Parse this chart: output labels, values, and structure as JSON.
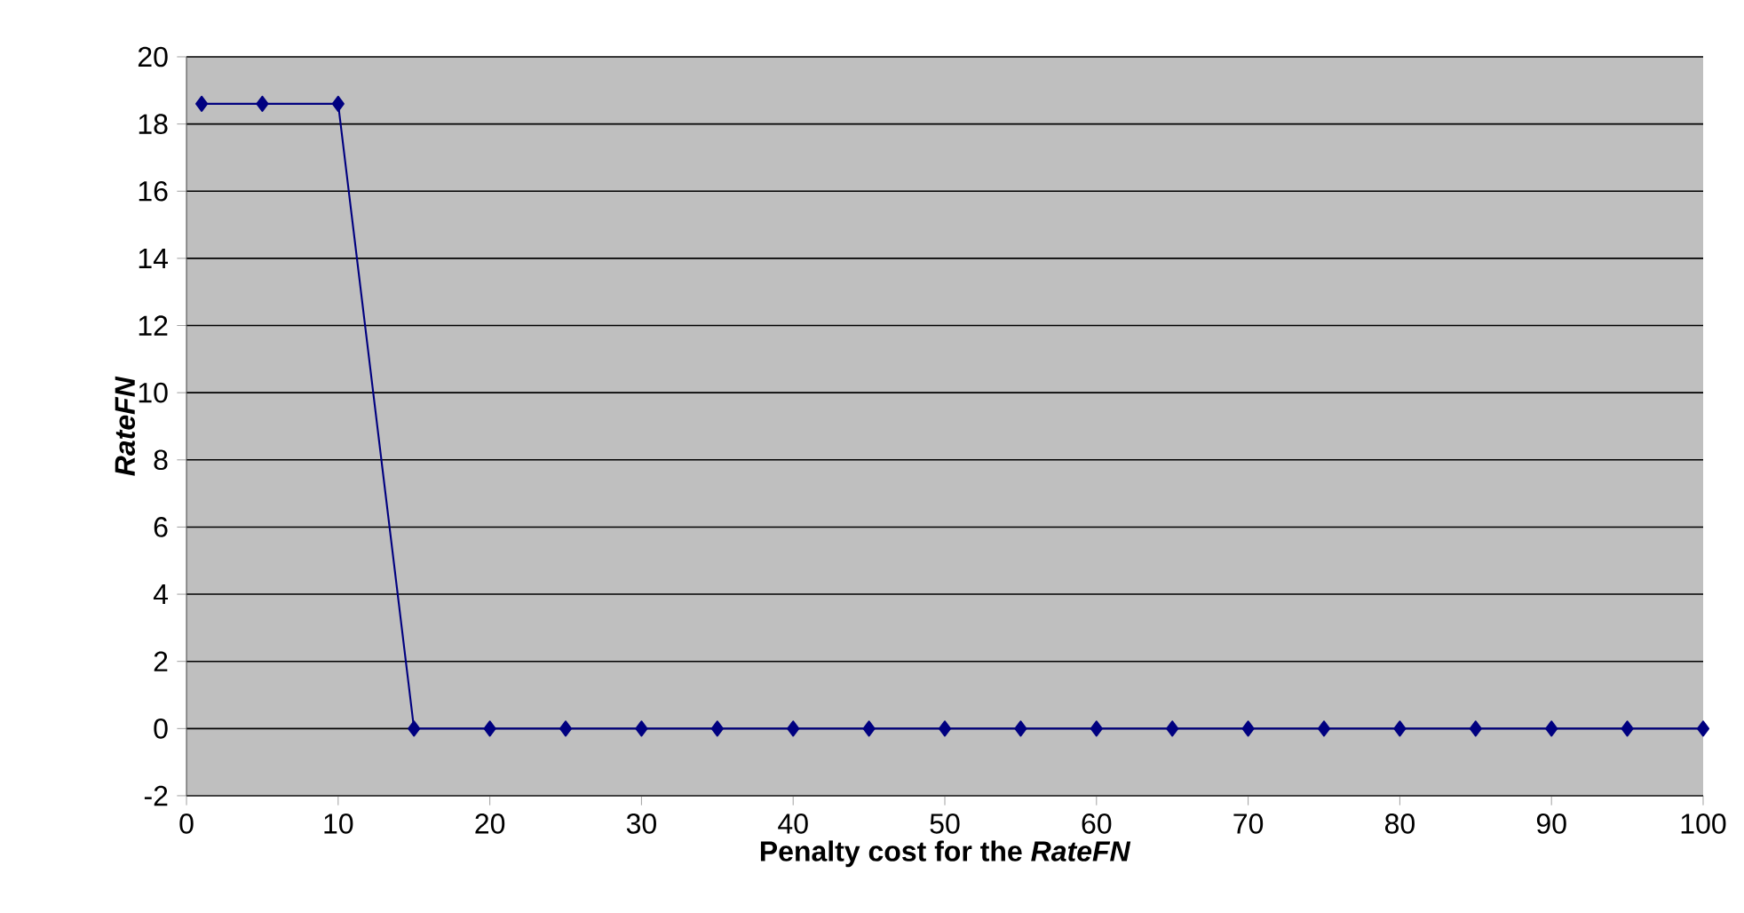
{
  "chart_data": {
    "type": "line",
    "xlabel": "Penalty cost for the *RateFN*",
    "ylabel": "*RateFN*",
    "x": [
      1,
      5,
      10,
      15,
      20,
      25,
      30,
      35,
      40,
      45,
      50,
      55,
      60,
      65,
      70,
      75,
      80,
      85,
      90,
      95,
      100
    ],
    "series": [
      {
        "color": "#000080",
        "values": [
          18.6,
          18.6,
          18.6,
          0,
          0,
          0,
          0,
          0,
          0,
          0,
          0,
          0,
          0,
          0,
          0,
          0,
          0,
          0,
          0,
          0,
          0
        ]
      }
    ],
    "xlim": [
      0,
      100
    ],
    "xticks": [
      0,
      10,
      20,
      30,
      40,
      50,
      60,
      70,
      80,
      90,
      100
    ],
    "ylim": [
      -2,
      20
    ],
    "yticks": [
      -2,
      0,
      2,
      4,
      6,
      8,
      10,
      12,
      14,
      16,
      18,
      20
    ],
    "grid": "y",
    "marker": "diamond",
    "line_style": "solid"
  }
}
